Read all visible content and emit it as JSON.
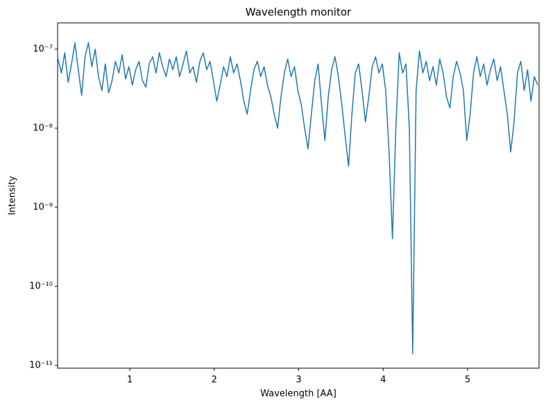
{
  "chart_data": {
    "type": "line",
    "title": "Wavelength monitor",
    "xlabel": "Wavelength [AA]",
    "ylabel": "Intensity",
    "x": [
      0.15,
      0.19,
      0.23,
      0.27,
      0.31,
      0.35,
      0.39,
      0.43,
      0.47,
      0.51,
      0.55,
      0.59,
      0.63,
      0.67,
      0.71,
      0.75,
      0.79,
      0.83,
      0.87,
      0.91,
      0.95,
      0.99,
      1.03,
      1.07,
      1.11,
      1.15,
      1.19,
      1.23,
      1.27,
      1.31,
      1.35,
      1.39,
      1.43,
      1.47,
      1.51,
      1.55,
      1.59,
      1.63,
      1.67,
      1.71,
      1.75,
      1.79,
      1.83,
      1.87,
      1.91,
      1.95,
      1.99,
      2.03,
      2.07,
      2.11,
      2.15,
      2.19,
      2.23,
      2.27,
      2.31,
      2.35,
      2.39,
      2.43,
      2.47,
      2.51,
      2.55,
      2.59,
      2.63,
      2.67,
      2.71,
      2.75,
      2.79,
      2.83,
      2.87,
      2.91,
      2.95,
      2.99,
      3.03,
      3.07,
      3.11,
      3.15,
      3.19,
      3.23,
      3.27,
      3.31,
      3.35,
      3.39,
      3.43,
      3.47,
      3.51,
      3.55,
      3.59,
      3.63,
      3.67,
      3.71,
      3.75,
      3.79,
      3.83,
      3.87,
      3.91,
      3.95,
      3.99,
      4.03,
      4.07,
      4.11,
      4.15,
      4.19,
      4.23,
      4.27,
      4.31,
      4.35,
      4.39,
      4.43,
      4.47,
      4.51,
      4.55,
      4.59,
      4.63,
      4.67,
      4.71,
      4.75,
      4.79,
      4.83,
      4.87,
      4.91,
      4.95,
      4.99,
      5.03,
      5.07,
      5.11,
      5.15,
      5.19,
      5.23,
      5.27,
      5.31,
      5.35,
      5.39,
      5.43,
      5.47,
      5.51,
      5.55,
      5.59,
      5.63,
      5.67,
      5.71,
      5.75,
      5.79,
      5.83
    ],
    "values": [
      7.5e-08,
      5e-08,
      9e-08,
      3.8e-08,
      6.5e-08,
      1.2e-07,
      5.5e-08,
      2.6e-08,
      8e-08,
      1.2e-07,
      6e-08,
      1e-07,
      4.5e-08,
      3e-08,
      6.5e-08,
      2.8e-08,
      4e-08,
      7e-08,
      5e-08,
      8.5e-08,
      4.2e-08,
      6e-08,
      3.5e-08,
      5.5e-08,
      7e-08,
      4e-08,
      3.3e-08,
      6.5e-08,
      8e-08,
      5e-08,
      9e-08,
      6e-08,
      4.5e-08,
      7.5e-08,
      5.5e-08,
      8e-08,
      4.5e-08,
      6.5e-08,
      9.5e-08,
      5e-08,
      6e-08,
      3.8e-08,
      7e-08,
      9e-08,
      5.5e-08,
      7e-08,
      4e-08,
      2.2e-08,
      3.5e-08,
      6e-08,
      4.5e-08,
      8e-08,
      5e-08,
      6.5e-08,
      4e-08,
      2.2e-08,
      1.5e-08,
      3e-08,
      5.5e-08,
      7e-08,
      4.5e-08,
      6e-08,
      3.5e-08,
      2.5e-08,
      1.5e-08,
      1e-08,
      2.5e-08,
      5e-08,
      7.5e-08,
      4.5e-08,
      6e-08,
      3e-08,
      2e-08,
      1e-08,
      5.5e-09,
      1.5e-08,
      4e-08,
      6.5e-08,
      2e-08,
      7e-09,
      2.5e-08,
      5.5e-08,
      8e-08,
      4.5e-08,
      2e-08,
      8e-09,
      3.3e-09,
      1.5e-08,
      5e-08,
      6.5e-08,
      3e-08,
      1.2e-08,
      2.5e-08,
      6e-08,
      8e-08,
      5e-08,
      6.5e-08,
      3e-08,
      5e-09,
      4e-10,
      1e-08,
      9e-08,
      5e-08,
      6.5e-08,
      1e-08,
      1.4e-11,
      3e-08,
      9.5e-08,
      5e-08,
      7e-08,
      4e-08,
      6e-08,
      3.5e-08,
      7.5e-08,
      5e-08,
      2.5e-08,
      1.8e-08,
      4.5e-08,
      7e-08,
      5e-08,
      3e-08,
      7e-09,
      1.5e-08,
      5e-08,
      8e-08,
      4.5e-08,
      6.5e-08,
      3.5e-08,
      5.5e-08,
      7.5e-08,
      4e-08,
      6e-08,
      3e-08,
      1.5e-08,
      5e-09,
      1.2e-08,
      5e-08,
      7e-08,
      3e-08,
      5.5e-08,
      2.2e-08,
      4.5e-08,
      3.5e-08
    ],
    "color": "#1f77b4",
    "log_y": true,
    "xlim": [
      0.145,
      5.846
    ],
    "xticks": [
      1,
      2,
      3,
      4,
      5
    ],
    "ylim": [
      9.2e-12,
      2.15e-07
    ],
    "yticks": [
      {
        "value": 1e-11,
        "label": "10⁻¹¹"
      },
      {
        "value": 1e-10,
        "label": "10⁻¹⁰"
      },
      {
        "value": 1e-09,
        "label": "10⁻⁹"
      },
      {
        "value": 1e-08,
        "label": "10⁻⁸"
      },
      {
        "value": 1e-07,
        "label": "10⁻⁷"
      }
    ]
  }
}
